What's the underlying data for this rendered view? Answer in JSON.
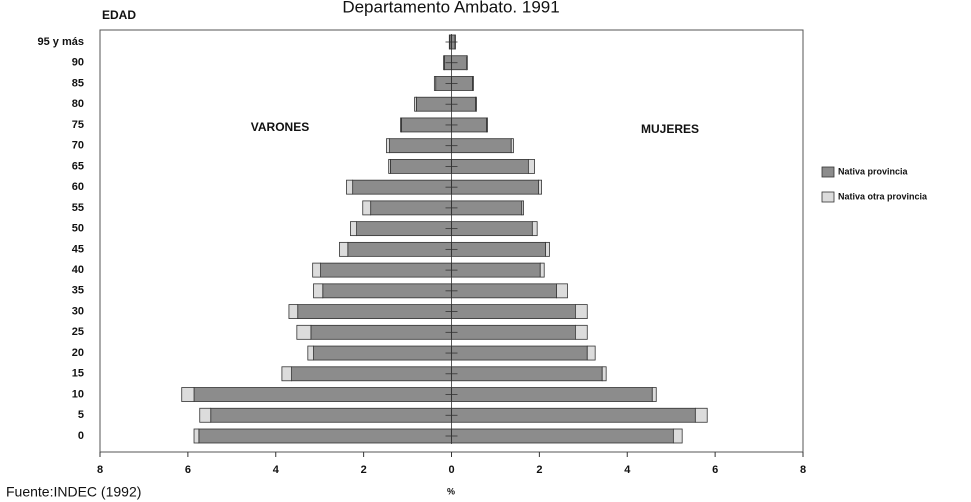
{
  "chart_data": {
    "type": "pyramid",
    "title": "Departamento Ambato. 1991",
    "y_label": "EDAD",
    "x_label": "%",
    "source": "Fuente:INDEC (1992)",
    "left_label": "VARONES",
    "right_label": "MUJERES",
    "categories": [
      "0",
      "5",
      "10",
      "15",
      "20",
      "25",
      "30",
      "35",
      "40",
      "45",
      "50",
      "55",
      "60",
      "65",
      "70",
      "75",
      "80",
      "85",
      "90",
      "95 y más"
    ],
    "xlim": [
      -8,
      8
    ],
    "xticks": [
      {
        "value": -8,
        "label": "8"
      },
      {
        "value": -6,
        "label": "6"
      },
      {
        "value": -4,
        "label": "4"
      },
      {
        "value": -2,
        "label": "2"
      },
      0,
      2,
      4,
      6,
      8
    ],
    "series": [
      {
        "name": "Nativa provincia",
        "color": "#8c8c8c",
        "men": [
          -5.75,
          -5.48,
          -5.86,
          -3.64,
          -3.14,
          -3.2,
          -3.5,
          -2.93,
          -2.98,
          -2.36,
          -2.16,
          -1.84,
          -2.25,
          -1.39,
          -1.41,
          -1.14,
          -0.8,
          -0.36,
          -0.16,
          -0.04
        ],
        "women": [
          5.05,
          5.55,
          4.57,
          3.43,
          3.09,
          2.82,
          2.82,
          2.39,
          2.02,
          2.14,
          1.84,
          1.6,
          1.98,
          1.75,
          1.36,
          0.8,
          0.55,
          0.48,
          0.34,
          0.08
        ]
      },
      {
        "name": "Nativa otra provincia",
        "color": "#dcdcdc",
        "men": [
          -0.11,
          -0.25,
          -0.28,
          -0.22,
          -0.13,
          -0.32,
          -0.2,
          -0.21,
          -0.18,
          -0.19,
          -0.14,
          -0.18,
          -0.14,
          -0.04,
          -0.07,
          -0.02,
          -0.04,
          -0.03,
          -0.02,
          -0.01
        ],
        "women": [
          0.2,
          0.27,
          0.09,
          0.09,
          0.18,
          0.27,
          0.27,
          0.25,
          0.09,
          0.09,
          0.11,
          0.04,
          0.07,
          0.14,
          0.05,
          0.02,
          0.02,
          0.02,
          0.02,
          0.01
        ]
      }
    ]
  }
}
